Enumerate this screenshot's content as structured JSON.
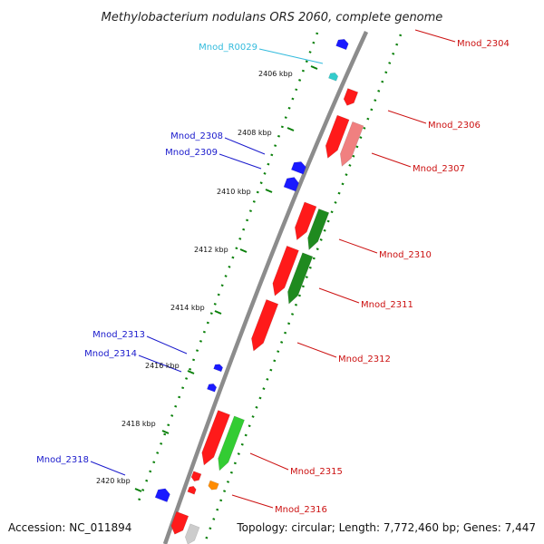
{
  "title": "Methylobacterium nodulans ORS 2060, complete genome",
  "accession": "Accession: NC_011894",
  "summary": "Topology: circular; Length: 7,772,460 bp; Genes: 7,447",
  "colors": {
    "forward_gene": "#ff1a1a",
    "forward_gene_alt": "#f08080",
    "reverse_gene": "#1a1aff",
    "rna": "#33cccc",
    "green_dark": "#1f8a1f",
    "green_light": "#33cc33",
    "orange": "#ff8c00",
    "backbone": "#8c8c8c",
    "tick": "#0a800a"
  },
  "scale_labels": [
    "2406 kbp",
    "2408 kbp",
    "2410 kbp",
    "2412 kbp",
    "2414 kbp",
    "2416 kbp",
    "2418 kbp",
    "2420 kbp"
  ],
  "left_labels": [
    {
      "text": "Mnod_R0029",
      "color": "#33bbdd"
    },
    {
      "text": "Mnod_2308",
      "color": "#1a1acc"
    },
    {
      "text": "Mnod_2309",
      "color": "#1a1acc"
    },
    {
      "text": "Mnod_2313",
      "color": "#1a1acc"
    },
    {
      "text": "Mnod_2314",
      "color": "#1a1acc"
    },
    {
      "text": "Mnod_2318",
      "color": "#1a1acc"
    }
  ],
  "right_labels": [
    {
      "text": "Mnod_2304",
      "color": "#cc1111"
    },
    {
      "text": "Mnod_2306",
      "color": "#cc1111"
    },
    {
      "text": "Mnod_2307",
      "color": "#cc1111"
    },
    {
      "text": "Mnod_2310",
      "color": "#cc1111"
    },
    {
      "text": "Mnod_2311",
      "color": "#cc1111"
    },
    {
      "text": "Mnod_2312",
      "color": "#cc1111"
    },
    {
      "text": "Mnod_2315",
      "color": "#cc1111"
    },
    {
      "text": "Mnod_2316",
      "color": "#cc1111"
    }
  ]
}
